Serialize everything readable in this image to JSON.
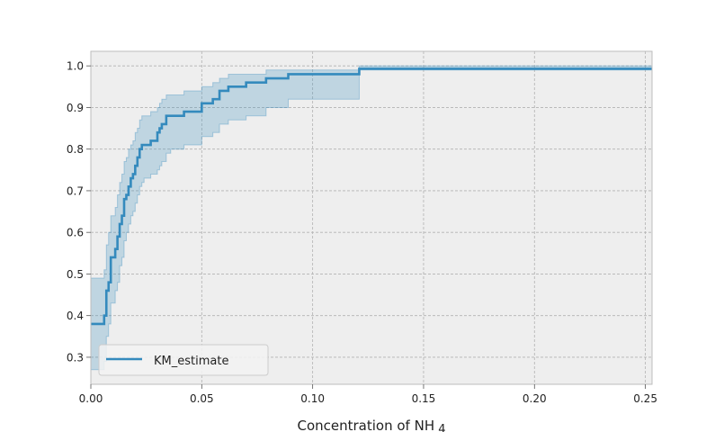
{
  "chart_data": {
    "type": "line",
    "title": "",
    "xlabel": "Concentration of NH_4",
    "ylabel": "",
    "xlim": [
      0,
      0.253
    ],
    "ylim": [
      0.235,
      1.035
    ],
    "xticks": [
      0.0,
      0.05,
      0.1,
      0.15,
      0.2,
      0.25
    ],
    "xtick_labels": [
      "0.00",
      "0.05",
      "0.10",
      "0.15",
      "0.20",
      "0.25"
    ],
    "yticks": [
      0.3,
      0.4,
      0.5,
      0.6,
      0.7,
      0.8,
      0.9,
      1.0
    ],
    "ytick_labels": [
      "0.3",
      "0.4",
      "0.5",
      "0.6",
      "0.7",
      "0.8",
      "0.9",
      "1.0"
    ],
    "grid": true,
    "legend_position": "lower-left",
    "colors": {
      "line": "#348abd",
      "band": "#348abd",
      "background": "#eeeeee",
      "grid": "#b2b2b2",
      "spine": "#bcbcbc"
    },
    "series": [
      {
        "name": "KM_estimate",
        "step": "post",
        "x": [
          0.0,
          0.006,
          0.007,
          0.008,
          0.009,
          0.011,
          0.012,
          0.013,
          0.014,
          0.015,
          0.016,
          0.017,
          0.018,
          0.019,
          0.02,
          0.021,
          0.022,
          0.023,
          0.024,
          0.027,
          0.03,
          0.031,
          0.032,
          0.034,
          0.036,
          0.042,
          0.05,
          0.055,
          0.058,
          0.062,
          0.07,
          0.079,
          0.089,
          0.121,
          0.253
        ],
        "y": [
          0.38,
          0.4,
          0.46,
          0.48,
          0.54,
          0.56,
          0.59,
          0.62,
          0.64,
          0.68,
          0.69,
          0.71,
          0.73,
          0.74,
          0.76,
          0.78,
          0.8,
          0.81,
          0.81,
          0.82,
          0.84,
          0.85,
          0.86,
          0.88,
          0.88,
          0.89,
          0.91,
          0.92,
          0.94,
          0.95,
          0.96,
          0.97,
          0.98,
          0.993,
          0.993
        ],
        "ci_lower": [
          0.27,
          0.29,
          0.35,
          0.38,
          0.43,
          0.46,
          0.48,
          0.52,
          0.54,
          0.58,
          0.6,
          0.62,
          0.64,
          0.65,
          0.67,
          0.69,
          0.71,
          0.72,
          0.73,
          0.74,
          0.75,
          0.76,
          0.77,
          0.79,
          0.8,
          0.81,
          0.83,
          0.84,
          0.86,
          0.87,
          0.88,
          0.9,
          0.92,
          0.99,
          0.99
        ],
        "ci_upper": [
          0.49,
          0.51,
          0.57,
          0.6,
          0.64,
          0.66,
          0.69,
          0.72,
          0.74,
          0.77,
          0.78,
          0.8,
          0.81,
          0.82,
          0.84,
          0.85,
          0.87,
          0.88,
          0.88,
          0.89,
          0.9,
          0.91,
          0.92,
          0.93,
          0.93,
          0.94,
          0.95,
          0.96,
          0.97,
          0.98,
          0.98,
          0.99,
          0.99,
          1.0,
          1.0
        ]
      }
    ]
  }
}
